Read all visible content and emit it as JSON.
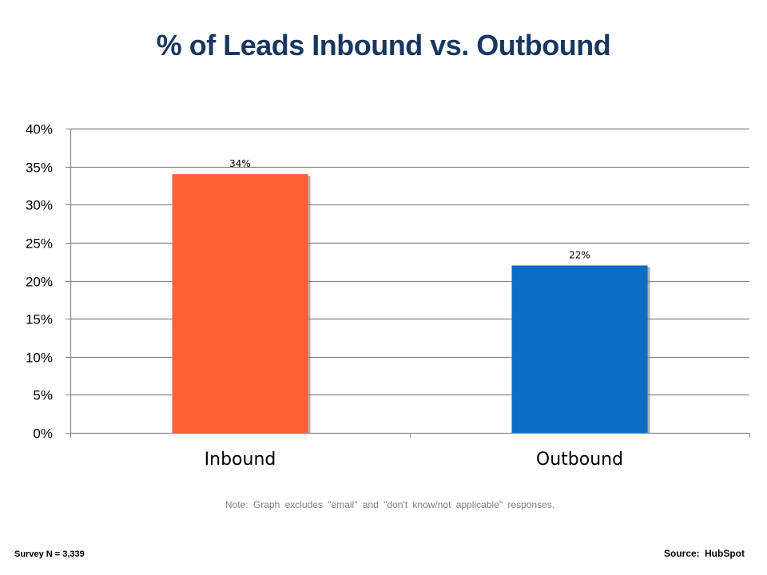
{
  "chart_data": {
    "type": "bar",
    "title": "% of Leads Inbound vs. Outbound",
    "categories": [
      "Inbound",
      "Outbound"
    ],
    "values": [
      34,
      22
    ],
    "data_labels": [
      "34%",
      "22%"
    ],
    "bar_colors": [
      "#fe6033",
      "#0b6cc3"
    ],
    "ylim": [
      0,
      40
    ],
    "y_ticks": [
      0,
      5,
      10,
      15,
      20,
      25,
      30,
      35,
      40
    ],
    "y_tick_labels": [
      "0%",
      "5%",
      "10%",
      "15%",
      "20%",
      "25%",
      "30%",
      "35%",
      "40%"
    ],
    "xlabel": "",
    "ylabel": "",
    "grid": true,
    "legend": "none"
  },
  "footer": {
    "note": "Note: Graph excludes \"email\" and \"don't know/not  applicable\" responses.",
    "survey": "Survey N = 3,339",
    "source": "Source:  HubSpot"
  },
  "colors": {
    "title": "#17375e",
    "grid": "#868686",
    "note": "#7f7f7f"
  }
}
